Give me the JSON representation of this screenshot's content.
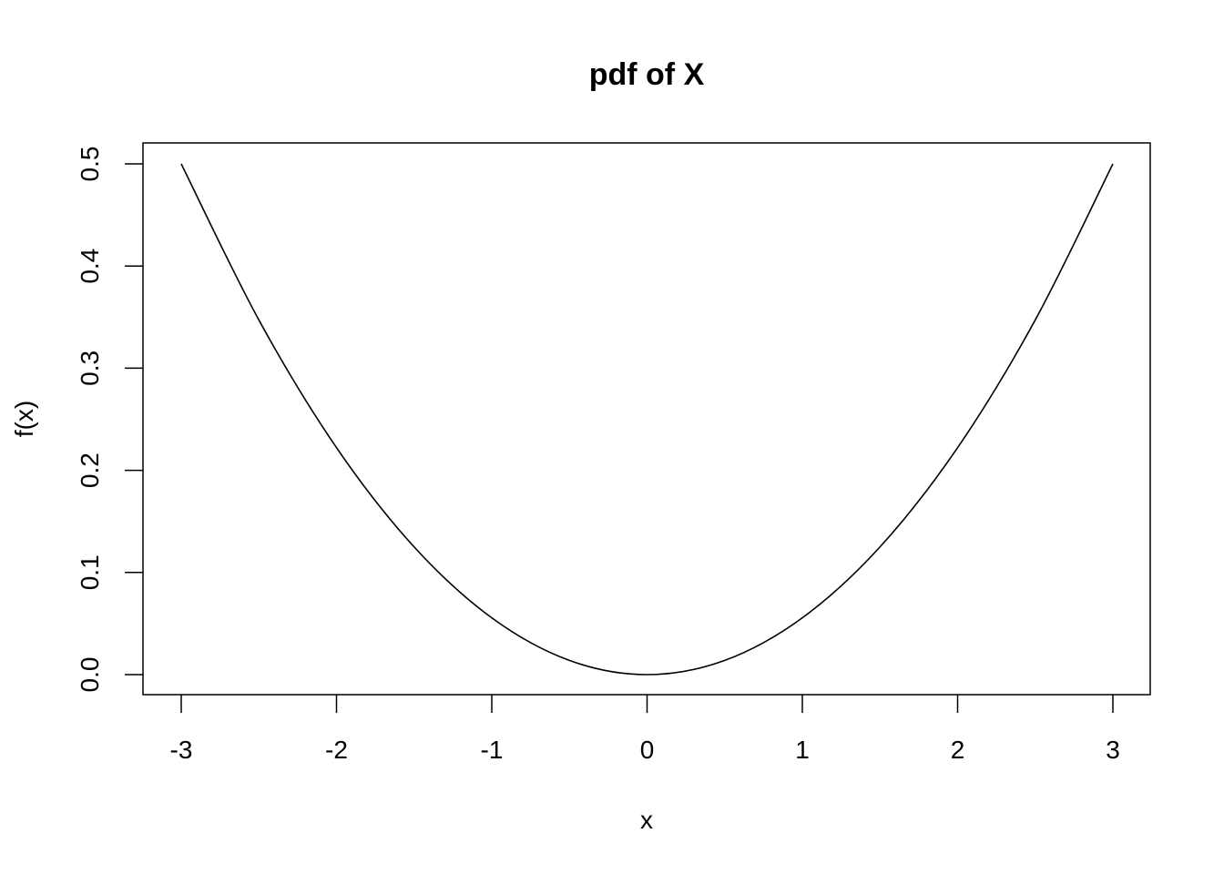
{
  "chart_data": {
    "type": "line",
    "title": "pdf of X",
    "xlabel": "x",
    "ylabel": "f(x)",
    "xlim": [
      -3,
      3
    ],
    "ylim": [
      0,
      0.5
    ],
    "x_ticks": [
      -3,
      -2,
      -1,
      0,
      1,
      2,
      3
    ],
    "x_tick_labels": [
      "-3",
      "-2",
      "-1",
      "0",
      "1",
      "2",
      "3"
    ],
    "y_ticks": [
      0,
      0.1,
      0.2,
      0.3,
      0.4,
      0.5
    ],
    "y_tick_labels": [
      "0.0",
      "0.1",
      "0.2",
      "0.3",
      "0.4",
      "0.5"
    ],
    "grid": false,
    "legend": "none",
    "line_color": "#000000",
    "series": [
      {
        "x": [
          -3,
          -2.5,
          -2,
          -1.5,
          -1,
          -0.5,
          0,
          0.5,
          1,
          1.5,
          2,
          2.5,
          3
        ],
        "y": [
          0.5,
          0.3472,
          0.2222,
          0.125,
          0.0556,
          0.0139,
          0,
          0.0139,
          0.0556,
          0.125,
          0.2222,
          0.3472,
          0.5
        ]
      }
    ]
  }
}
